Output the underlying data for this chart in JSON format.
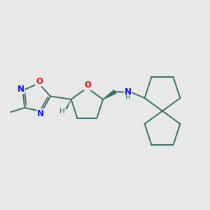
{
  "bg_color": "#e8e8e8",
  "bond_color": "#3a7068",
  "bond_width": 1.4,
  "atom_colors": {
    "N": "#1010ee",
    "O": "#ee1010",
    "C": "#000000"
  },
  "font_size_atom": 8.5,
  "font_size_H": 7.5,
  "fig_w": 3.0,
  "fig_h": 3.0,
  "dpi": 100
}
